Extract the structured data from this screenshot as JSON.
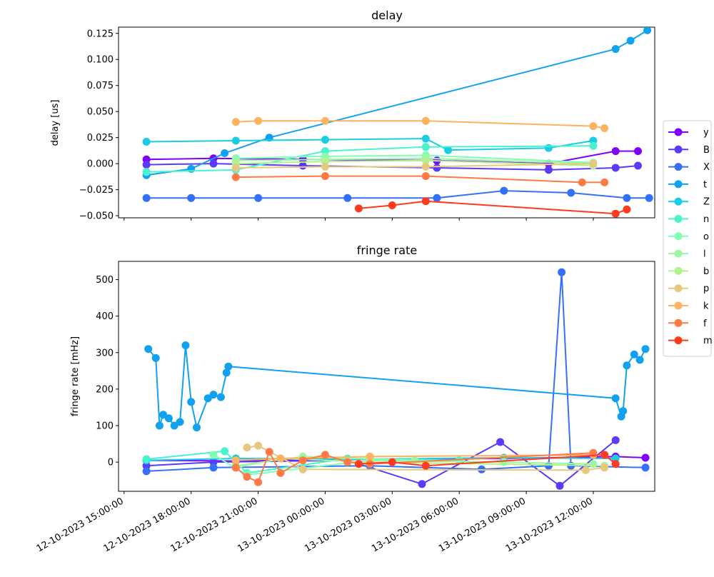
{
  "chart_data": [
    {
      "type": "line",
      "title": "delay",
      "xlabel": "",
      "ylabel": "delay [us]",
      "x_axis": "datetime",
      "xlim": [
        "2023-10-12 14:45:00",
        "2023-10-13 14:45:00"
      ],
      "ylim": [
        -0.052,
        0.131
      ],
      "yticks": [
        -0.05,
        -0.025,
        0.0,
        0.025,
        0.05,
        0.075,
        0.1,
        0.125
      ],
      "ytick_labels": [
        "−0.050",
        "−0.025",
        "0.000",
        "0.025",
        "0.050",
        "0.075",
        "0.100",
        "0.125"
      ],
      "series": [
        {
          "name": "y",
          "color": "#8000ff",
          "x": [
            "2023-10-12 16:00:00",
            "2023-10-12 19:00:00",
            "2023-10-12 23:00:00",
            "2023-10-13 05:00:00",
            "2023-10-13 10:00:00",
            "2023-10-13 13:00:00",
            "2023-10-13 14:00:00"
          ],
          "y": [
            0.004,
            0.005,
            0.004,
            0.003,
            0.0,
            0.012,
            0.012
          ]
        },
        {
          "name": "B",
          "color": "#5a3bfd",
          "x": [
            "2023-10-12 16:00:00",
            "2023-10-12 19:00:00",
            "2023-10-12 23:00:00",
            "2023-10-13 05:00:00",
            "2023-10-13 10:00:00",
            "2023-10-13 13:00:00",
            "2023-10-13 14:00:00"
          ],
          "y": [
            -0.001,
            0.0,
            -0.002,
            -0.004,
            -0.006,
            -0.004,
            -0.002
          ]
        },
        {
          "name": "X",
          "color": "#3470fa",
          "x": [
            "2023-10-12 16:00:00",
            "2023-10-12 18:00:00",
            "2023-10-12 21:00:00",
            "2023-10-13 01:00:00",
            "2023-10-13 05:00:00",
            "2023-10-13 08:00:00",
            "2023-10-13 11:00:00",
            "2023-10-13 13:30:00",
            "2023-10-13 14:30:00"
          ],
          "y": [
            -0.033,
            -0.033,
            -0.033,
            -0.033,
            -0.033,
            -0.026,
            -0.028,
            -0.033,
            -0.033
          ]
        },
        {
          "name": "t",
          "color": "#10a2f0",
          "x": [
            "2023-10-12 16:00:00",
            "2023-10-12 18:00:00",
            "2023-10-12 19:30:00",
            "2023-10-12 21:30:00",
            "2023-10-13 13:00:00",
            "2023-10-13 13:40:00",
            "2023-10-13 14:25:00"
          ],
          "y": [
            -0.011,
            -0.005,
            0.01,
            0.025,
            0.11,
            0.118,
            0.128
          ]
        },
        {
          "name": "Z",
          "color": "#18cde4",
          "x": [
            "2023-10-12 16:00:00",
            "2023-10-12 20:00:00",
            "2023-10-13 00:00:00",
            "2023-10-13 04:30:00",
            "2023-10-13 05:30:00",
            "2023-10-13 10:00:00",
            "2023-10-13 12:00:00"
          ],
          "y": [
            0.021,
            0.022,
            0.023,
            0.024,
            0.013,
            0.015,
            0.022
          ]
        },
        {
          "name": "n",
          "color": "#4cf2ce",
          "x": [
            "2023-10-12 16:00:00",
            "2023-10-12 20:00:00",
            "2023-10-13 00:00:00",
            "2023-10-13 04:30:00",
            "2023-10-13 12:00:00"
          ],
          "y": [
            -0.008,
            -0.006,
            0.012,
            0.016,
            0.017
          ]
        },
        {
          "name": "o",
          "color": "#80ffb4",
          "x": [
            "2023-10-12 20:00:00",
            "2023-10-13 00:00:00",
            "2023-10-13 04:30:00",
            "2023-10-13 12:00:00"
          ],
          "y": [
            0.005,
            0.007,
            0.008,
            0.001
          ]
        },
        {
          "name": "l",
          "color": "#9cf7a1",
          "x": [
            "2023-10-12 20:00:00",
            "2023-10-13 00:00:00",
            "2023-10-13 04:30:00",
            "2023-10-13 12:00:00"
          ],
          "y": [
            0.003,
            0.004,
            0.005,
            0.0
          ]
        },
        {
          "name": "b",
          "color": "#b3f08e",
          "x": [
            "2023-10-12 20:00:00",
            "2023-10-13 00:00:00",
            "2023-10-13 04:30:00",
            "2023-10-13 12:00:00"
          ],
          "y": [
            0.0,
            0.002,
            0.003,
            -0.002
          ]
        },
        {
          "name": "p",
          "color": "#e6c97e",
          "x": [
            "2023-10-12 20:00:00",
            "2023-10-13 00:00:00",
            "2023-10-13 04:30:00",
            "2023-10-13 12:00:00"
          ],
          "y": [
            -0.004,
            -0.003,
            -0.003,
            0.0
          ]
        },
        {
          "name": "k",
          "color": "#ffb360",
          "x": [
            "2023-10-12 20:00:00",
            "2023-10-12 21:00:00",
            "2023-10-13 00:00:00",
            "2023-10-13 04:30:00",
            "2023-10-13 12:00:00",
            "2023-10-13 12:30:00"
          ],
          "y": [
            0.04,
            0.041,
            0.041,
            0.041,
            0.036,
            0.034
          ]
        },
        {
          "name": "f",
          "color": "#ff7a45",
          "x": [
            "2023-10-12 20:00:00",
            "2023-10-13 00:00:00",
            "2023-10-13 04:30:00",
            "2023-10-13 11:30:00",
            "2023-10-13 12:30:00"
          ],
          "y": [
            -0.013,
            -0.012,
            -0.012,
            -0.018,
            -0.018
          ]
        },
        {
          "name": "m",
          "color": "#ff3b1f",
          "x": [
            "2023-10-13 01:30:00",
            "2023-10-13 03:00:00",
            "2023-10-13 04:30:00",
            "2023-10-13 13:00:00",
            "2023-10-13 13:30:00"
          ],
          "y": [
            -0.043,
            -0.04,
            -0.036,
            -0.048,
            -0.044
          ]
        }
      ]
    },
    {
      "type": "line",
      "title": "fringe rate",
      "xlabel": "",
      "ylabel": "fringe rate [mHz]",
      "x_axis": "datetime",
      "xlim": [
        "2023-10-12 14:45:00",
        "2023-10-13 14:45:00"
      ],
      "ylim": [
        -80,
        550
      ],
      "yticks": [
        0,
        100,
        200,
        300,
        400,
        500
      ],
      "ytick_labels": [
        "0",
        "100",
        "200",
        "300",
        "400",
        "500"
      ],
      "xticks": [
        "2023-10-12 15:00:00",
        "2023-10-12 18:00:00",
        "2023-10-12 21:00:00",
        "2023-10-13 00:00:00",
        "2023-10-13 03:00:00",
        "2023-10-13 06:00:00",
        "2023-10-13 09:00:00",
        "2023-10-13 12:00:00"
      ],
      "xtick_labels": [
        "12-10-2023 15:00:00",
        "12-10-2023 18:00:00",
        "12-10-2023 21:00:00",
        "13-10-2023 00:00:00",
        "13-10-2023 03:00:00",
        "13-10-2023 06:00:00",
        "13-10-2023 09:00:00",
        "13-10-2023 12:00:00"
      ],
      "series": [
        {
          "name": "y",
          "color": "#8000ff",
          "x": [
            "2023-10-12 16:00:00",
            "2023-10-12 20:00:00",
            "2023-10-13 02:00:00",
            "2023-10-13 08:00:00",
            "2023-10-13 13:00:00",
            "2023-10-13 14:20:00"
          ],
          "y": [
            5,
            3,
            8,
            10,
            15,
            12
          ]
        },
        {
          "name": "B",
          "color": "#5a3bfd",
          "x": [
            "2023-10-12 16:00:00",
            "2023-10-12 19:00:00",
            "2023-10-13 01:00:00",
            "2023-10-13 04:20:00",
            "2023-10-13 07:50:00",
            "2023-10-13 10:30:00",
            "2023-10-13 13:00:00"
          ],
          "y": [
            -10,
            0,
            5,
            -60,
            55,
            -65,
            60
          ]
        },
        {
          "name": "X",
          "color": "#3470fa",
          "x": [
            "2023-10-12 16:00:00",
            "2023-10-12 19:00:00",
            "2023-10-13 02:00:00",
            "2023-10-13 07:00:00",
            "2023-10-13 10:00:00",
            "2023-10-13 10:35:00",
            "2023-10-13 11:00:00",
            "2023-10-13 14:20:00"
          ],
          "y": [
            -25,
            -15,
            -10,
            -20,
            -10,
            520,
            -10,
            -15
          ]
        },
        {
          "name": "t",
          "color": "#10a2f0",
          "x": [
            "2023-10-12 16:05:00",
            "2023-10-12 16:25:00",
            "2023-10-12 16:35:00",
            "2023-10-12 16:45:00",
            "2023-10-12 17:00:00",
            "2023-10-12 17:15:00",
            "2023-10-12 17:30:00",
            "2023-10-12 17:45:00",
            "2023-10-12 18:00:00",
            "2023-10-12 18:15:00",
            "2023-10-12 18:45:00",
            "2023-10-12 19:00:00",
            "2023-10-12 19:20:00",
            "2023-10-12 19:35:00",
            "2023-10-12 19:40:00",
            "2023-10-13 13:00:00",
            "2023-10-13 13:15:00",
            "2023-10-13 13:20:00",
            "2023-10-13 13:30:00",
            "2023-10-13 13:50:00",
            "2023-10-13 14:05:00",
            "2023-10-13 14:20:00"
          ],
          "y": [
            310,
            285,
            100,
            130,
            120,
            100,
            110,
            320,
            165,
            95,
            175,
            185,
            178,
            245,
            262,
            175,
            125,
            140,
            265,
            295,
            280,
            310
          ]
        },
        {
          "name": "Z",
          "color": "#18cde4",
          "x": [
            "2023-10-12 16:00:00",
            "2023-10-12 20:00:00",
            "2023-10-13 02:00:00",
            "2023-10-13 08:00:00",
            "2023-10-13 13:00:00"
          ],
          "y": [
            5,
            10,
            8,
            12,
            10
          ]
        },
        {
          "name": "n",
          "color": "#4cf2ce",
          "x": [
            "2023-10-12 16:00:00",
            "2023-10-12 19:30:00",
            "2023-10-12 20:30:00",
            "2023-10-13 01:00:00",
            "2023-10-13 06:00:00"
          ],
          "y": [
            8,
            30,
            -30,
            10,
            5
          ]
        },
        {
          "name": "o",
          "color": "#80ffb4",
          "x": [
            "2023-10-12 19:00:00",
            "2023-10-12 20:30:00",
            "2023-10-13 02:00:00",
            "2023-10-13 08:00:00"
          ],
          "y": [
            20,
            -35,
            5,
            0
          ]
        },
        {
          "name": "l",
          "color": "#9cf7a1",
          "x": [
            "2023-10-12 20:00:00",
            "2023-10-12 23:00:00",
            "2023-10-13 04:00:00",
            "2023-10-13 12:00:00"
          ],
          "y": [
            -10,
            15,
            5,
            -5
          ]
        },
        {
          "name": "b",
          "color": "#b3f08e",
          "x": [
            "2023-10-12 20:00:00",
            "2023-10-12 22:00:00",
            "2023-10-13 02:00:00",
            "2023-10-13 12:30:00"
          ],
          "y": [
            -15,
            10,
            0,
            -10
          ]
        },
        {
          "name": "p",
          "color": "#e6c97e",
          "x": [
            "2023-10-12 20:30:00",
            "2023-10-12 21:00:00",
            "2023-10-12 23:00:00",
            "2023-10-13 11:40:00",
            "2023-10-13 12:30:00"
          ],
          "y": [
            40,
            45,
            -20,
            -22,
            -15
          ]
        },
        {
          "name": "k",
          "color": "#ffb360",
          "x": [
            "2023-10-12 20:00:00",
            "2023-10-12 22:00:00",
            "2023-10-13 02:00:00",
            "2023-10-13 12:00:00"
          ],
          "y": [
            5,
            10,
            15,
            20
          ]
        },
        {
          "name": "f",
          "color": "#ff7a45",
          "x": [
            "2023-10-12 20:00:00",
            "2023-10-12 20:30:00",
            "2023-10-12 21:00:00",
            "2023-10-12 21:30:00",
            "2023-10-12 22:00:00",
            "2023-10-12 23:00:00",
            "2023-10-13 00:00:00",
            "2023-10-13 01:00:00",
            "2023-10-13 02:00:00",
            "2023-10-13 12:00:00"
          ],
          "y": [
            -15,
            -40,
            -55,
            28,
            -30,
            5,
            20,
            0,
            -5,
            25
          ]
        },
        {
          "name": "m",
          "color": "#ff3b1f",
          "x": [
            "2023-10-13 01:30:00",
            "2023-10-13 03:00:00",
            "2023-10-13 04:30:00",
            "2023-10-13 12:30:00",
            "2023-10-13 13:00:00"
          ],
          "y": [
            -5,
            0,
            -10,
            20,
            -5
          ]
        }
      ]
    }
  ]
}
